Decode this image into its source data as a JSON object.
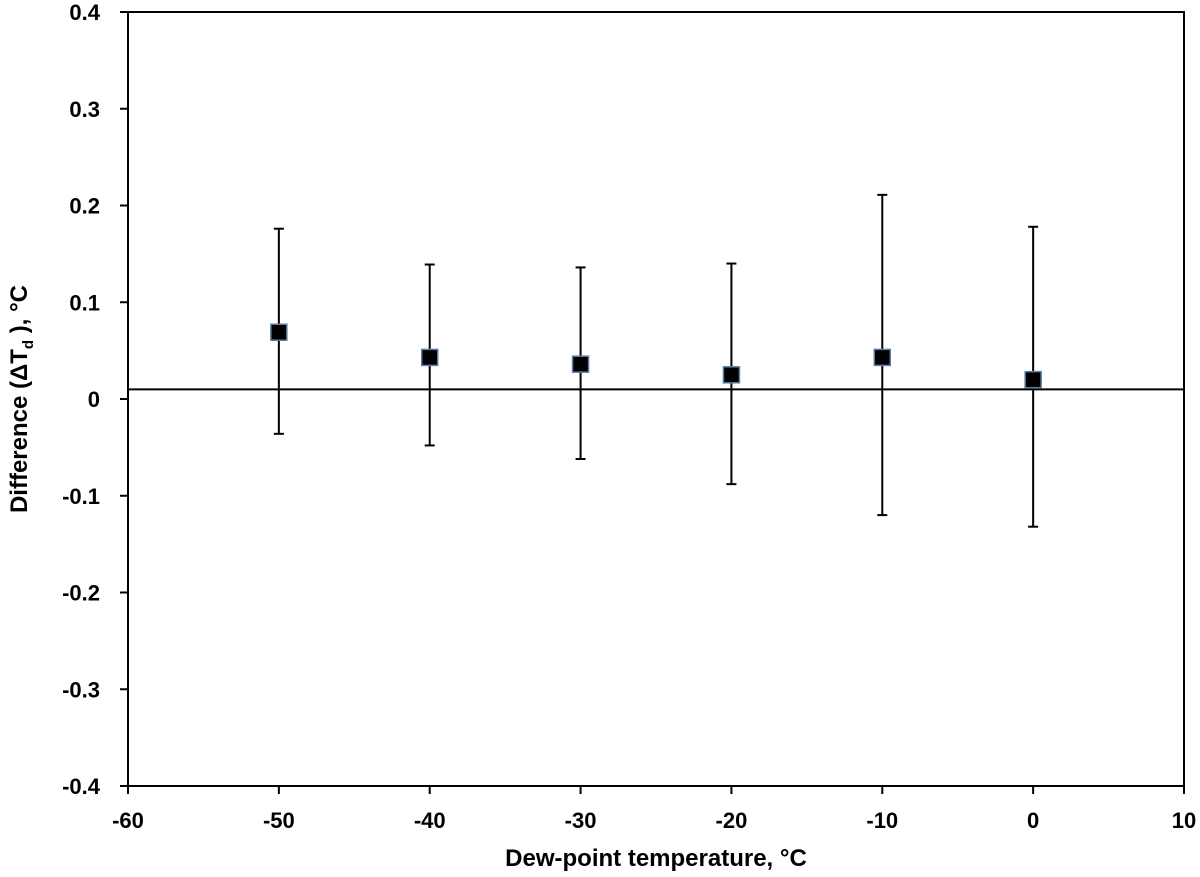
{
  "chart_data": {
    "type": "scatter",
    "title": "",
    "xlabel": "Dew-point temperature, °C",
    "ylabel": {
      "prefix": "Difference (ΔT",
      "subscript": "d",
      "suffix": " ), °C"
    },
    "xlim": [
      -60,
      10
    ],
    "ylim": [
      -0.4,
      0.4
    ],
    "x_ticks": [
      -60,
      -50,
      -40,
      -30,
      -20,
      -10,
      0,
      10
    ],
    "x_tick_labels": [
      "-60",
      "-50",
      "-40",
      "-30",
      "-20",
      "-10",
      "0",
      "10"
    ],
    "y_ticks": [
      0.4,
      0.3,
      0.2,
      0.1,
      0,
      -0.1,
      -0.2,
      -0.3,
      -0.4
    ],
    "y_tick_labels": [
      "0.4",
      "0.3",
      "0.2",
      "0.1",
      "0",
      "-0.1",
      "-0.2",
      "-0.3",
      "-0.4"
    ],
    "grid": false,
    "reference_line_y": 0.01,
    "series": [
      {
        "name": "Difference",
        "marker": "square",
        "color": "#000000",
        "marker_edge": "#5b7fa8",
        "x": [
          -50,
          -40,
          -30,
          -20,
          -10,
          0
        ],
        "y": [
          0.069,
          0.043,
          0.036,
          0.025,
          0.043,
          0.02
        ],
        "err_upper": [
          0.176,
          0.139,
          0.136,
          0.14,
          0.211,
          0.178
        ],
        "err_lower": [
          -0.036,
          -0.048,
          -0.062,
          -0.088,
          -0.12,
          -0.132
        ]
      }
    ]
  }
}
